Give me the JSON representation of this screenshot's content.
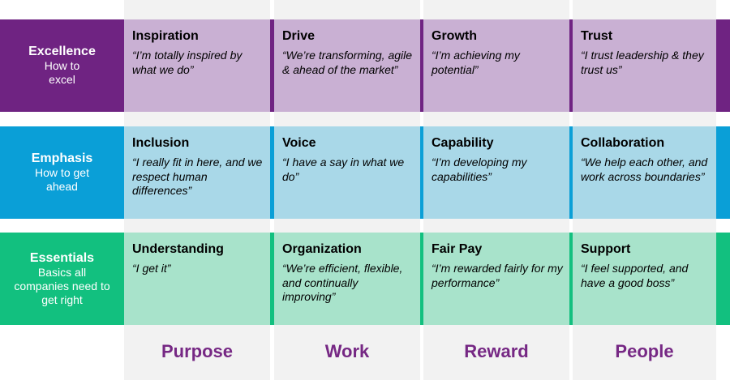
{
  "colors": {
    "excellence_dark": "#6f2382",
    "excellence_light": "#c9b0d3",
    "emphasis_dark": "#0a9fd7",
    "emphasis_light": "#a9d8e8",
    "essentials_dark": "#12c07f",
    "essentials_light": "#a8e3cb",
    "column_label": "#762884",
    "column_bg": "#f2f2f2"
  },
  "columns": [
    {
      "label": "Purpose"
    },
    {
      "label": "Work"
    },
    {
      "label": "Reward"
    },
    {
      "label": "People"
    }
  ],
  "rows": [
    {
      "title": "Excellence",
      "subtitle": "How to excel",
      "cells": [
        {
          "title": "Inspiration",
          "quote": "“I’m totally inspired by what we do”"
        },
        {
          "title": "Drive",
          "quote": "“We’re transforming, agile & ahead of the market”"
        },
        {
          "title": "Growth",
          "quote": "“I’m achieving my potential”"
        },
        {
          "title": "Trust",
          "quote": "“I trust leadership & they trust us”"
        }
      ]
    },
    {
      "title": "Emphasis",
      "subtitle": "How to get ahead",
      "cells": [
        {
          "title": "Inclusion",
          "quote": "“I really fit in here, and we respect human differences”"
        },
        {
          "title": "Voice",
          "quote": "“I have a say in what we do”"
        },
        {
          "title": "Capability",
          "quote": "“I’m developing my capabilities”"
        },
        {
          "title": "Collaboration",
          "quote": "“We help each other, and work across boundaries”"
        }
      ]
    },
    {
      "title": "Essentials",
      "subtitle": "Basics all companies need to get right",
      "cells": [
        {
          "title": "Understanding",
          "quote": "“I get it”"
        },
        {
          "title": "Organization",
          "quote": "“We’re efficient, flexible, and continually improving”"
        },
        {
          "title": "Fair Pay",
          "quote": "“I’m rewarded fairly for my performance”"
        },
        {
          "title": "Support",
          "quote": "“I feel supported, and have a good boss”"
        }
      ]
    }
  ]
}
